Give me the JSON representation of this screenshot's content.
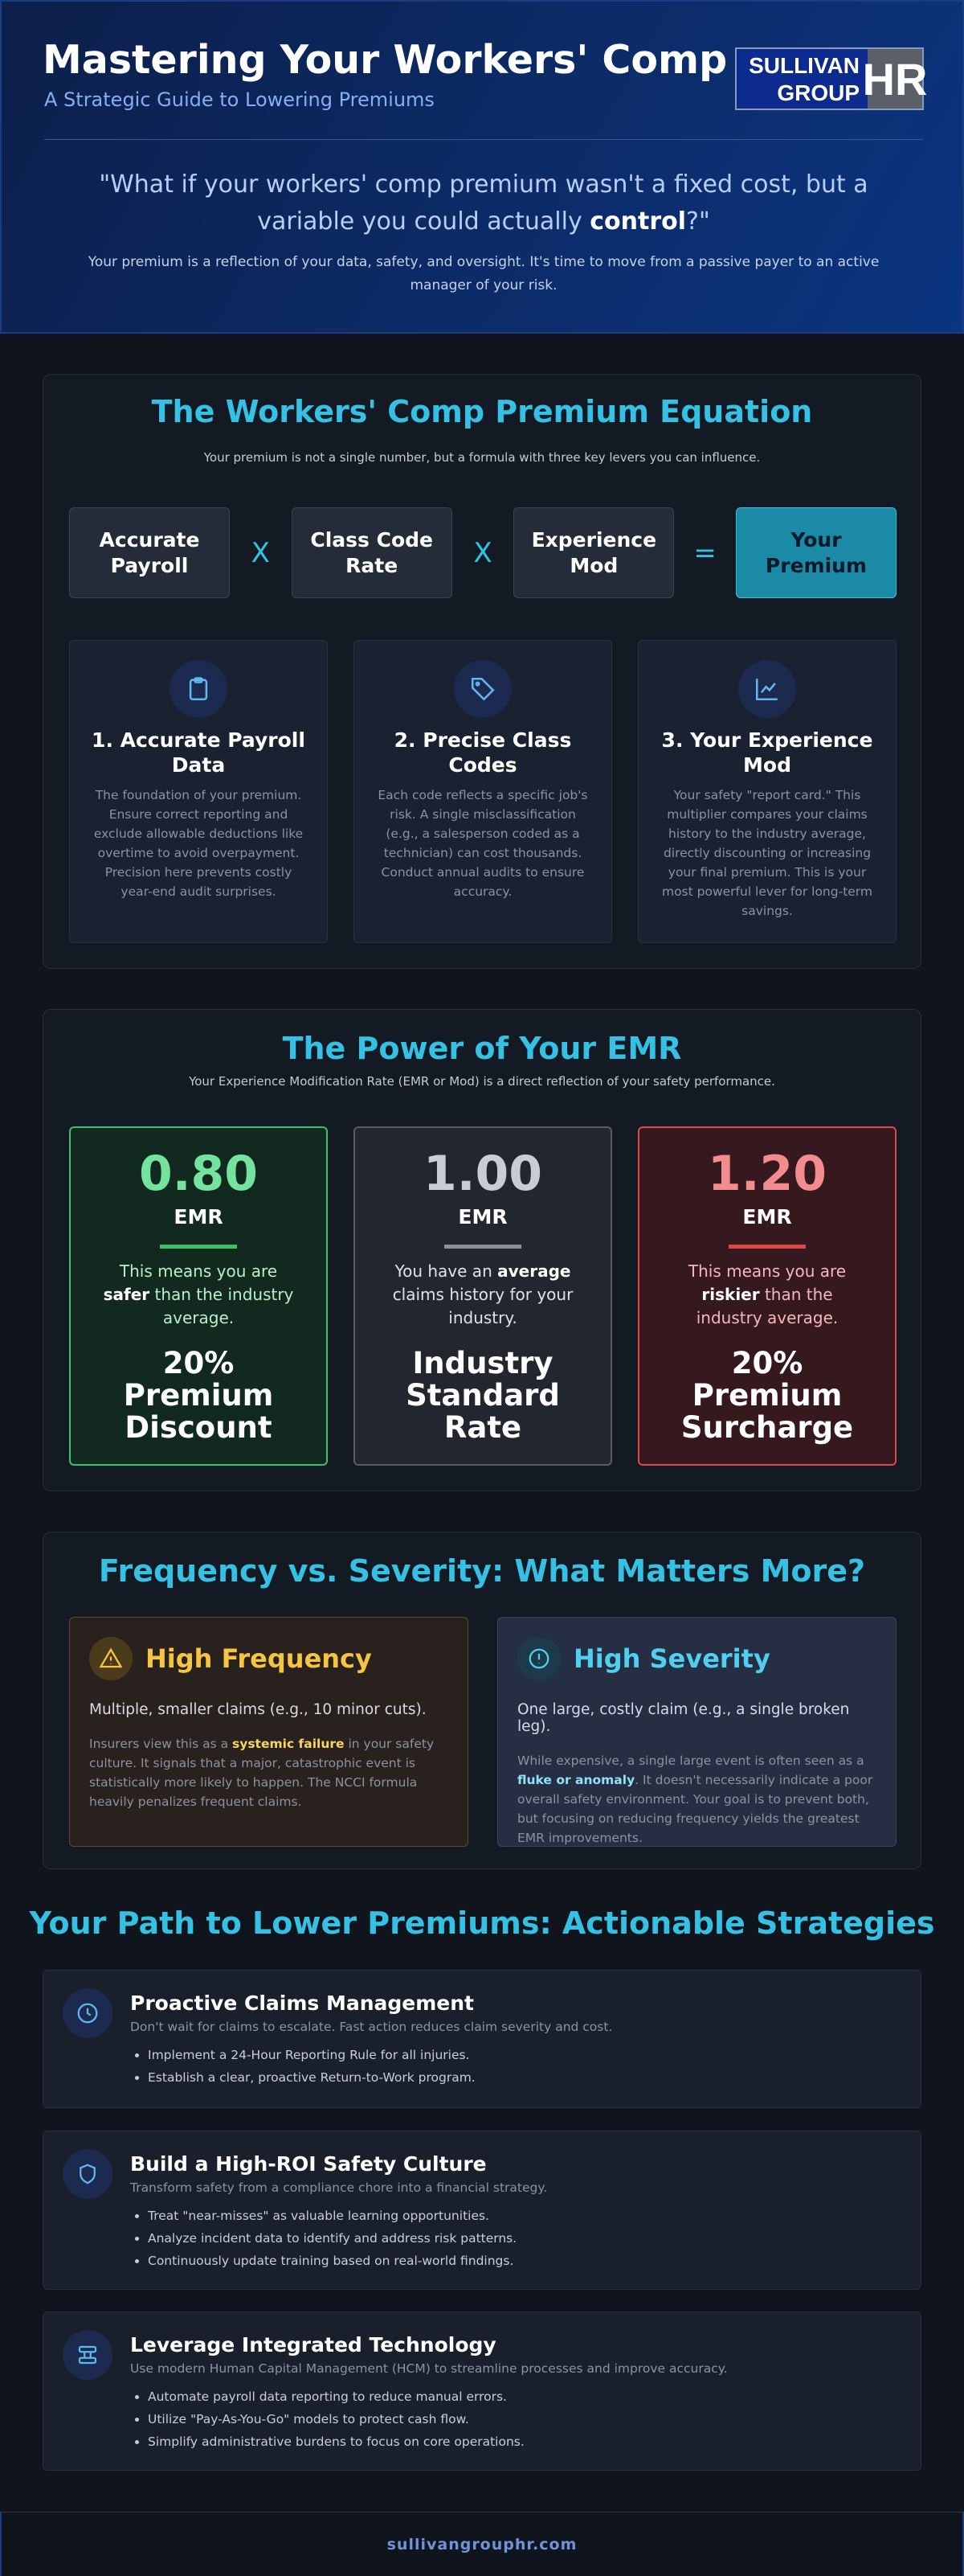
{
  "header": {
    "title": "Mastering Your Workers' Comp",
    "subtitle": "A Strategic Guide to Lowering Premiums",
    "logo": {
      "line1": "SULLIVAN",
      "line2": "GROUP",
      "mark": "HR"
    },
    "quote": {
      "before": "\"What if your workers' comp premium wasn't a fixed cost, but a variable you could actually ",
      "emphasis": "control",
      "after": "?\""
    },
    "intro": "Your premium is a reflection of your data, safety, and oversight. It's time to move from a passive payer to an active manager of your risk."
  },
  "equation": {
    "title": "The Workers' Comp Premium Equation",
    "subtitle": "Your premium is not a single number, but a formula with three key levers you can influence.",
    "terms": [
      "Accurate Payroll",
      "Class Code Rate",
      "Experience Mod"
    ],
    "operators": [
      "X",
      "X",
      "="
    ],
    "result": "Your Premium",
    "levers": [
      {
        "title": "1. Accurate Payroll Data",
        "text": "The foundation of your premium. Ensure correct reporting and exclude allowable deductions like overtime to avoid overpayment. Precision here prevents costly year-end audit surprises."
      },
      {
        "title": "2. Precise Class Codes",
        "text": "Each code reflects a specific job's risk. A single misclassification (e.g., a salesperson coded as a technician) can cost thousands. Conduct annual audits to ensure accuracy."
      },
      {
        "title": "3. Your Experience Mod",
        "text": "Your safety \"report card.\" This multiplier compares your claims history to the industry average, directly discounting or increasing your final premium. This is your most powerful lever for long-term savings."
      }
    ]
  },
  "emr": {
    "title": "The Power of Your EMR",
    "subtitle": "Your Experience Modification Rate (EMR or Mod) is a direct reflection of your safety performance.",
    "cards": [
      {
        "value": "0.80",
        "unit": "EMR",
        "text": {
          "before": "This means you are ",
          "emphasis": "safer",
          "after": " than the industry average."
        },
        "outcome": "20% Premium Discount"
      },
      {
        "value": "1.00",
        "unit": "EMR",
        "text": {
          "before": "You have an ",
          "emphasis": "average",
          "after": " claims history for your industry."
        },
        "outcome": "Industry Standard Rate"
      },
      {
        "value": "1.20",
        "unit": "EMR",
        "text": {
          "before": "This means you are ",
          "emphasis": "riskier",
          "after": " than the industry average."
        },
        "outcome": "20% Premium Surcharge"
      }
    ]
  },
  "frequency": {
    "title": "Frequency vs. Severity: What Matters More?",
    "panels": [
      {
        "heading": "High Frequency",
        "summary": "Multiple, smaller claims (e.g., 10 minor cuts).",
        "detail": {
          "before": "Insurers view this as a ",
          "emphasis": "systemic failure",
          "after": " in your safety culture. It signals that a major, catastrophic event is statistically more likely to happen. The NCCI formula heavily penalizes frequent claims."
        }
      },
      {
        "heading": "High Severity",
        "summary": "One large, costly claim (e.g., a single broken leg).",
        "detail": {
          "before": "While expensive, a single large event is often seen as a ",
          "emphasis": "fluke or anomaly",
          "after": ". It doesn't necessarily indicate a poor overall safety environment. Your goal is to prevent both, but focusing on reducing frequency yields the greatest EMR improvements."
        }
      }
    ]
  },
  "strategies": {
    "title": "Your Path to Lower Premiums: Actionable Strategies",
    "items": [
      {
        "heading": "Proactive Claims Management",
        "summary": "Don't wait for claims to escalate. Fast action reduces claim severity and cost.",
        "bullets": [
          "Implement a 24-Hour Reporting Rule for all injuries.",
          "Establish a clear, proactive Return-to-Work program."
        ]
      },
      {
        "heading": "Build a High-ROI Safety Culture",
        "summary": "Transform safety from a compliance chore into a financial strategy.",
        "bullets": [
          "Treat \"near-misses\" as valuable learning opportunities.",
          "Analyze incident data to identify and address risk patterns.",
          "Continuously update training based on real-world findings."
        ]
      },
      {
        "heading": "Leverage Integrated Technology",
        "summary": "Use modern Human Capital Management (HCM) to streamline processes and improve accuracy.",
        "bullets": [
          "Automate payroll data reporting to reduce manual errors.",
          "Utilize \"Pay-As-You-Go\" models to protect cash flow.",
          "Simplify administrative burdens to focus on core operations."
        ]
      }
    ]
  },
  "footer": {
    "url": "sullivangrouphr.com"
  }
}
